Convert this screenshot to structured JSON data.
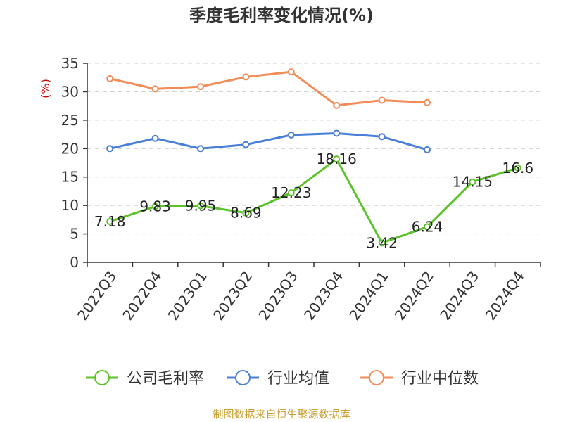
{
  "chart_data": {
    "type": "line",
    "title": "季度毛利率变化情况(%)",
    "xlabel": "",
    "ylabel": "(%)",
    "categories": [
      "2022Q3",
      "2022Q4",
      "2023Q1",
      "2023Q2",
      "2023Q3",
      "2023Q4",
      "2024Q1",
      "2024Q2",
      "2024Q3",
      "2024Q4"
    ],
    "ylim": [
      0,
      35
    ],
    "yticks": [
      0,
      5,
      10,
      15,
      20,
      25,
      30,
      35
    ],
    "grid": true,
    "legend_position": "bottom",
    "series": [
      {
        "name": "公司毛利率",
        "color": "#5cc22a",
        "labels": true,
        "values": [
          7.18,
          9.83,
          9.95,
          8.69,
          12.23,
          18.16,
          3.42,
          6.24,
          14.15,
          16.6
        ]
      },
      {
        "name": "行业均值",
        "color": "#4a7fd8",
        "labels": false,
        "values": [
          20.0,
          21.8,
          20.0,
          20.7,
          22.4,
          22.7,
          22.1,
          19.8,
          null,
          null
        ]
      },
      {
        "name": "行业中位数",
        "color": "#f28c58",
        "labels": false,
        "values": [
          32.3,
          30.5,
          30.9,
          32.6,
          33.5,
          27.6,
          28.5,
          28.1,
          null,
          null
        ]
      }
    ]
  },
  "source_text": "制图数据来自恒生聚源数据库"
}
